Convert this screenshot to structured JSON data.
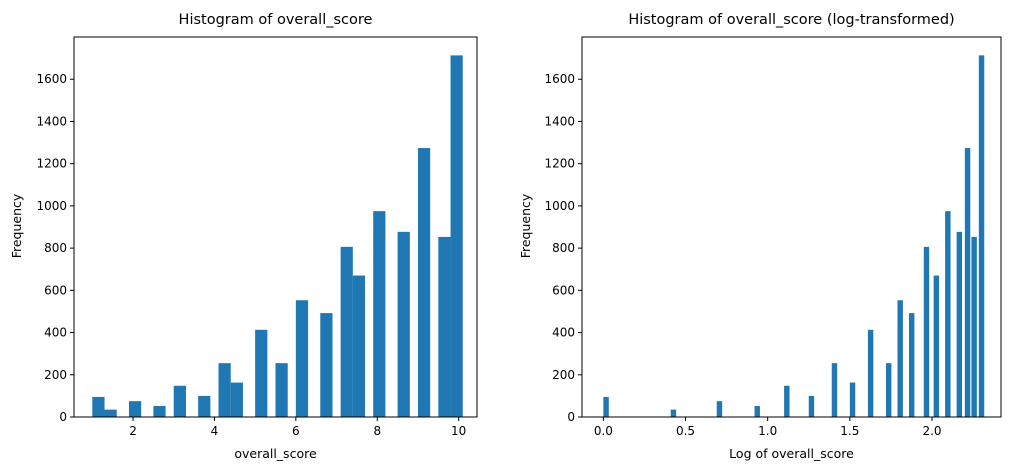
{
  "chart_data": [
    {
      "type": "bar",
      "title": "Histogram of overall_score",
      "xlabel": "overall_score",
      "ylabel": "Frequency",
      "xlim": [
        0.55,
        10.45
      ],
      "ylim": [
        0,
        1800
      ],
      "xticks": [
        2,
        4,
        6,
        8,
        10
      ],
      "yticks": [
        0,
        200,
        400,
        600,
        800,
        1000,
        1200,
        1400,
        1600
      ],
      "grid": false,
      "color": "#1f77b4",
      "bin_width": 0.3,
      "bins": [
        {
          "x": 1.0,
          "value": 95
        },
        {
          "x": 1.3,
          "value": 35
        },
        {
          "x": 1.9,
          "value": 75
        },
        {
          "x": 2.5,
          "value": 52
        },
        {
          "x": 3.0,
          "value": 148
        },
        {
          "x": 3.6,
          "value": 100
        },
        {
          "x": 4.1,
          "value": 255
        },
        {
          "x": 4.4,
          "value": 163
        },
        {
          "x": 5.0,
          "value": 413
        },
        {
          "x": 5.5,
          "value": 255
        },
        {
          "x": 6.0,
          "value": 553
        },
        {
          "x": 6.6,
          "value": 492
        },
        {
          "x": 7.1,
          "value": 806
        },
        {
          "x": 7.4,
          "value": 670
        },
        {
          "x": 7.9,
          "value": 975
        },
        {
          "x": 8.5,
          "value": 877
        },
        {
          "x": 9.0,
          "value": 1274
        },
        {
          "x": 9.5,
          "value": 853
        },
        {
          "x": 9.8,
          "value": 1713
        }
      ]
    },
    {
      "type": "bar",
      "title": "Histogram of overall_score (log-transformed)",
      "xlabel": "Log of overall_score",
      "ylabel": "Frequency",
      "xlim": [
        -0.13,
        2.42
      ],
      "ylim": [
        0,
        1800
      ],
      "xticks": [
        0.0,
        0.5,
        1.0,
        1.5,
        2.0
      ],
      "xtick_labels": [
        "0.0",
        "0.5",
        "1.0",
        "1.5",
        "2.0"
      ],
      "yticks": [
        0,
        200,
        400,
        600,
        800,
        1000,
        1200,
        1400,
        1600
      ],
      "grid": false,
      "color": "#1f77b4",
      "bin_width": 0.033,
      "bins": [
        {
          "x": 0.0,
          "value": 95
        },
        {
          "x": 0.41,
          "value": 35
        },
        {
          "x": 0.69,
          "value": 75
        },
        {
          "x": 0.92,
          "value": 52
        },
        {
          "x": 1.1,
          "value": 148
        },
        {
          "x": 1.25,
          "value": 100
        },
        {
          "x": 1.39,
          "value": 255
        },
        {
          "x": 1.5,
          "value": 163
        },
        {
          "x": 1.61,
          "value": 413
        },
        {
          "x": 1.72,
          "value": 255
        },
        {
          "x": 1.79,
          "value": 553
        },
        {
          "x": 1.86,
          "value": 492
        },
        {
          "x": 1.95,
          "value": 806
        },
        {
          "x": 2.01,
          "value": 670
        },
        {
          "x": 2.08,
          "value": 975
        },
        {
          "x": 2.15,
          "value": 877
        },
        {
          "x": 2.2,
          "value": 1274
        },
        {
          "x": 2.24,
          "value": 853
        },
        {
          "x": 2.285,
          "value": 1713
        }
      ]
    }
  ]
}
